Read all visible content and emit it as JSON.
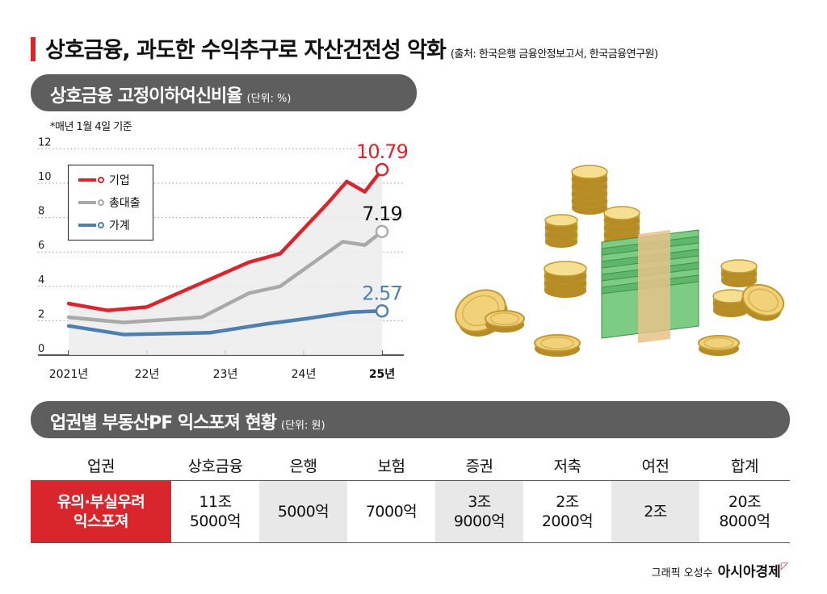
{
  "header": {
    "title": "상호금융, 과도한 수익추구로 자산건전성 악화",
    "source": "(출처: 한국은행 금융안정보고서, 한국금융연구원)"
  },
  "chart_section": {
    "title": "상호금융 고정이하여신비율",
    "unit": "(단위: %)",
    "note": "*매년 1월 4일 기준"
  },
  "chart_data": {
    "type": "line",
    "title": "상호금융 고정이하여신비율",
    "ylabel": "%",
    "ylim": [
      0,
      12
    ],
    "yticks": [
      0,
      2,
      4,
      6,
      8,
      10,
      12
    ],
    "x": [
      0,
      0.5,
      1,
      1.5,
      2,
      2.5,
      3,
      3.25,
      3.5,
      3.75,
      4
    ],
    "xticks": [
      0,
      1,
      2,
      3,
      4
    ],
    "xtick_labels": [
      "2021년",
      "22년",
      "23년",
      "24년",
      "25년"
    ],
    "colors": {
      "기업": "#d9262d",
      "총대출": "#a9a9a9",
      "가계": "#4d7fb0"
    },
    "series": [
      {
        "name": "기업",
        "values": [
          3.0,
          2.6,
          2.8,
          5.4,
          5.9,
          8.8,
          10.1,
          9.5,
          10.79
        ],
        "x": [
          0,
          0.5,
          1,
          2.3,
          2.7,
          3.3,
          3.55,
          3.78,
          4
        ]
      },
      {
        "name": "총대출",
        "values": [
          2.2,
          1.9,
          2.2,
          3.6,
          4.0,
          6.6,
          6.4,
          7.19
        ],
        "x": [
          0,
          0.7,
          1.7,
          2.3,
          2.7,
          3.5,
          3.78,
          4
        ]
      },
      {
        "name": "가계",
        "values": [
          1.7,
          1.2,
          1.3,
          1.8,
          2.1,
          2.5,
          2.57
        ],
        "x": [
          0,
          0.7,
          1.8,
          2.5,
          3.0,
          3.6,
          4
        ]
      }
    ],
    "end_labels": [
      "10.79",
      "7.19",
      "2.57"
    ],
    "legend": [
      "기업",
      "총대출",
      "가계"
    ]
  },
  "table_section": {
    "title": "업권별 부동산PF 익스포져 현황",
    "unit": "(단위: 원)",
    "headers": [
      "업권",
      "상호금융",
      "은행",
      "보험",
      "증권",
      "저축",
      "여전",
      "합계"
    ],
    "row_label": "유의·부실우려\n익스포져",
    "values": [
      "11조\n5000억",
      "5000억",
      "7000억",
      "3조\n9000억",
      "2조\n2000억",
      "2조",
      "20조\n8000억"
    ]
  },
  "credit": {
    "text": "그래픽 오성수",
    "brand": "아시아경제"
  }
}
